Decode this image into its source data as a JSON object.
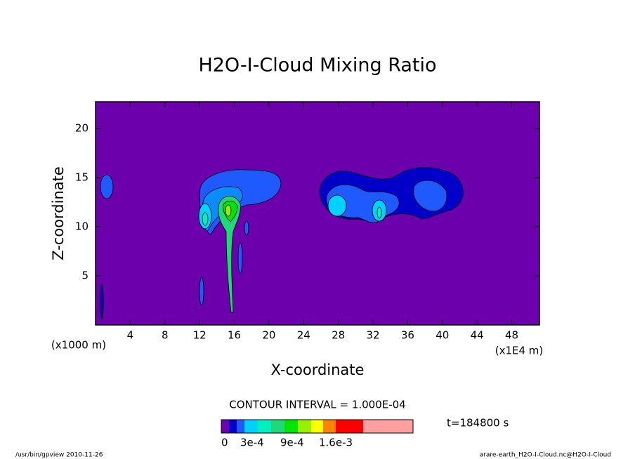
{
  "chart_data": {
    "type": "contour",
    "title": "H2O-I-Cloud Mixing Ratio",
    "x_label": "X-coordinate",
    "y_label": "Z-coordinate",
    "x_unit_left": "(x1000 m)",
    "x_unit_right": "(x1E4 m)",
    "xlim": [
      0,
      51.2
    ],
    "ylim": [
      0,
      22.7
    ],
    "xticks": [
      4,
      8,
      12,
      16,
      20,
      24,
      28,
      32,
      36,
      40,
      44,
      48
    ],
    "yticks": [
      5,
      10,
      15,
      20
    ],
    "background_color": "#6c00ac",
    "contour_interval": "CONTOUR INTERVAL = 1.000E-04",
    "time_label": "t=184800 s",
    "colorbar": {
      "colors": [
        "#6c00ac",
        "#0000c8",
        "#1e5aff",
        "#00d2ff",
        "#00f0c0",
        "#20d878",
        "#00e600",
        "#96f000",
        "#ffff00",
        "#ff8200",
        "#ff0000",
        "#ffa0a0"
      ],
      "ticks": [
        0,
        {
          "value": 0.0003,
          "label": "3e-4"
        },
        {
          "value": 0.0009,
          "label": "9e-4"
        },
        {
          "value": 0.0016,
          "label": "1.6e-3"
        }
      ]
    },
    "footer_left": "/usr/bin/gpview  2010-11-26",
    "footer_right": "arare-earth_H2O-I-Cloud.nc@H2O-I-Cloud"
  }
}
